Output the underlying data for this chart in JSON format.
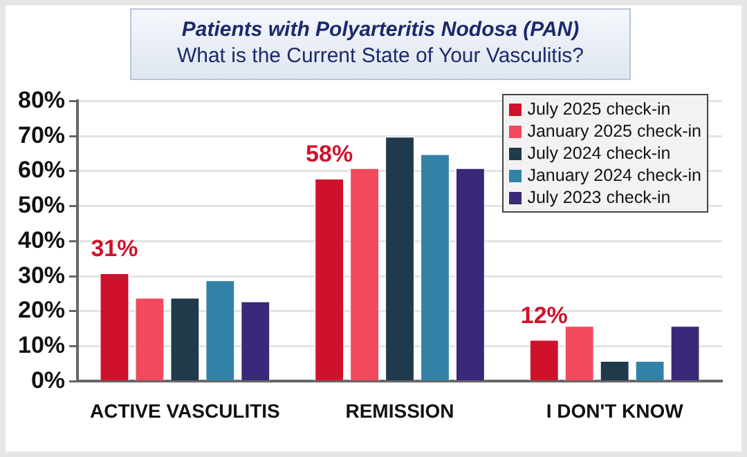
{
  "chart_data": {
    "type": "bar",
    "title": "Patients with Polyarteritis Nodosa (PAN)",
    "subtitle": "What is the Current State of Your Vasculitis?",
    "categories": [
      "ACTIVE VASCULITIS",
      "REMISSION",
      "I DON'T KNOW"
    ],
    "series": [
      {
        "name": "July 2025 check-in",
        "color": "#d0112b",
        "values": [
          31,
          58,
          12
        ],
        "value_labels": [
          "31%",
          "58%",
          "12%"
        ]
      },
      {
        "name": "January 2025 check-in",
        "color": "#f24a5c",
        "values": [
          24,
          61,
          16
        ]
      },
      {
        "name": "July 2024 check-in",
        "color": "#1f3a4a",
        "values": [
          24,
          70,
          6
        ]
      },
      {
        "name": "January 2024 check-in",
        "color": "#3282a8",
        "values": [
          29,
          65,
          6
        ]
      },
      {
        "name": "July 2023 check-in",
        "color": "#3a2878",
        "values": [
          23,
          61,
          16
        ]
      }
    ],
    "ylim": [
      0,
      80
    ],
    "yticks": [
      {
        "value": 0,
        "label": "0%"
      },
      {
        "value": 10,
        "label": "10%"
      },
      {
        "value": 20,
        "label": "20%"
      },
      {
        "value": 30,
        "label": "30%"
      },
      {
        "value": 40,
        "label": "40%"
      },
      {
        "value": 50,
        "label": "50%"
      },
      {
        "value": 60,
        "label": "60%"
      },
      {
        "value": 70,
        "label": "70%"
      },
      {
        "value": 80,
        "label": "80%"
      }
    ],
    "grid": "y",
    "legend": "top right"
  }
}
